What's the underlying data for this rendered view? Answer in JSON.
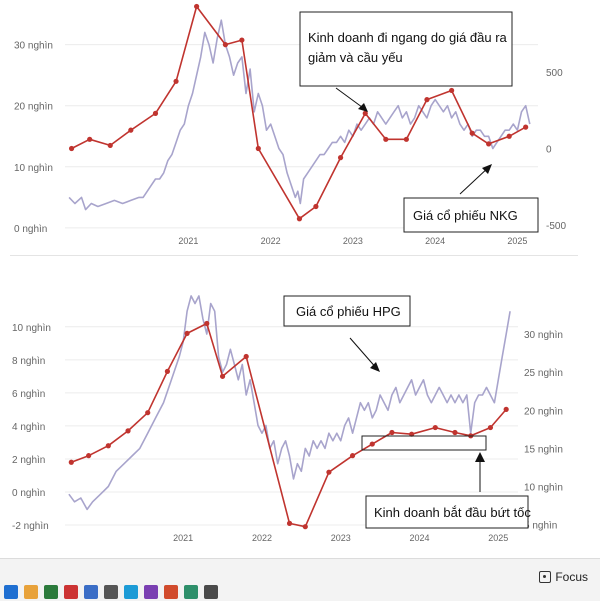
{
  "chart_data": [
    {
      "type": "line",
      "x_ticks": [
        "2021",
        "2022",
        "2023",
        "2024",
        "2025"
      ],
      "left_axis": {
        "tick_labels": [
          "0 nghìn",
          "10 nghìn",
          "20 nghìn",
          "30 nghìn"
        ],
        "tick_values": [
          0,
          10,
          20,
          30
        ],
        "ylim": [
          -1,
          36
        ]
      },
      "right_axis": {
        "tick_labels": [
          "-500",
          "0",
          "500"
        ],
        "tick_values": [
          -500,
          0,
          500
        ],
        "ylim": [
          -560,
          920
        ]
      },
      "series": [
        {
          "color": "#a8a4cc",
          "axis": "left",
          "x": [
            2020.05,
            2020.12,
            2020.2,
            2020.25,
            2020.32,
            2020.4,
            2020.5,
            2020.6,
            2020.7,
            2020.8,
            2020.9,
            2020.95,
            2021.0,
            2021.05,
            2021.1,
            2021.15,
            2021.2,
            2021.25,
            2021.3,
            2021.35,
            2021.4,
            2021.45,
            2021.5,
            2021.55,
            2021.6,
            2021.65,
            2021.7,
            2021.75,
            2021.8,
            2021.85,
            2021.9,
            2021.95,
            2022.0,
            2022.05,
            2022.1,
            2022.15,
            2022.2,
            2022.25,
            2022.3,
            2022.35,
            2022.4,
            2022.45,
            2022.5,
            2022.55,
            2022.6,
            2022.65,
            2022.7,
            2022.75,
            2022.8,
            2022.83,
            2022.86,
            2022.9,
            2022.95,
            2023.0,
            2023.05,
            2023.1,
            2023.15,
            2023.2,
            2023.25,
            2023.3,
            2023.35,
            2023.4,
            2023.45,
            2023.5,
            2023.55,
            2023.6,
            2023.65,
            2023.7,
            2023.75,
            2023.8,
            2023.85,
            2023.9,
            2023.95,
            2024.0,
            2024.05,
            2024.1,
            2024.15,
            2024.2,
            2024.25,
            2024.3,
            2024.35,
            2024.4,
            2024.45,
            2024.5,
            2024.55,
            2024.6,
            2024.65,
            2024.7,
            2024.75,
            2024.8,
            2024.85,
            2024.9,
            2024.95,
            2025.0,
            2025.05,
            2025.1,
            2025.15,
            2025.2,
            2025.25,
            2025.3,
            2025.35,
            2025.4,
            2025.45,
            2025.5,
            2025.55,
            2025.6,
            2025.65
          ],
          "values": [
            5,
            4,
            5,
            3,
            4,
            3.5,
            4,
            4.5,
            4,
            4.5,
            5,
            5,
            6,
            7,
            8,
            8,
            9,
            11,
            12,
            14,
            16,
            17,
            20,
            22,
            25,
            28,
            32,
            30,
            27,
            31,
            34,
            30,
            28,
            25,
            27,
            28,
            22,
            26,
            19,
            22,
            20,
            16,
            17,
            15,
            13,
            12,
            9,
            7,
            5,
            6,
            4,
            8,
            9,
            10,
            11,
            12,
            12,
            13,
            14,
            14,
            15,
            14,
            16,
            15,
            17,
            16,
            17,
            18,
            17,
            19,
            18,
            17,
            18,
            19,
            20,
            18,
            19,
            17,
            18,
            20,
            19,
            18,
            20,
            21,
            20,
            19,
            20,
            18,
            19,
            17,
            16,
            17,
            15,
            16,
            16,
            15,
            15,
            13,
            14,
            15,
            16,
            16,
            17,
            16,
            19,
            20,
            17
          ],
          "label": "Giá cổ phiếu NKG"
        },
        {
          "color": "#c0342f",
          "axis": "right",
          "x": [
            2020.08,
            2020.3,
            2020.55,
            2020.8,
            2021.1,
            2021.35,
            2021.6,
            2021.95,
            2022.15,
            2022.35,
            2022.85,
            2023.05,
            2023.35,
            2023.65,
            2023.9,
            2024.15,
            2024.4,
            2024.7,
            2024.95,
            2025.15,
            2025.4,
            2025.6
          ],
          "values": [
            0,
            60,
            20,
            120,
            230,
            440,
            930,
            680,
            710,
            0,
            -460,
            -380,
            -60,
            230,
            60,
            60,
            320,
            380,
            100,
            30,
            80,
            140
          ],
          "label": "Kinh doanh"
        }
      ],
      "annotations": [
        {
          "text": "Kinh doanh đi ngang do giá đầu ra giảm và cầu yếu"
        },
        {
          "text": "Giá cổ phiếu NKG"
        }
      ]
    },
    {
      "type": "line",
      "x_ticks": [
        "2021",
        "2022",
        "2023",
        "2024",
        "2025"
      ],
      "left_axis": {
        "tick_labels": [
          "-2 nghìn",
          "0 nghìn",
          "2 nghìn",
          "4 nghìn",
          "6 nghìn",
          "8 nghìn",
          "10 nghìn"
        ],
        "tick_values": [
          -2,
          0,
          2,
          4,
          6,
          8,
          10
        ],
        "ylim": [
          -2.3,
          11.5
        ]
      },
      "right_axis": {
        "tick_labels": [
          "5 nghìn",
          "10 nghìn",
          "15 nghìn",
          "20 nghìn",
          "25 nghìn",
          "30 nghìn"
        ],
        "tick_values": [
          5,
          10,
          15,
          20,
          25,
          30
        ],
        "ylim": [
          4.3,
          34.2
        ]
      },
      "series": [
        {
          "color": "#a8a4cc",
          "axis": "right",
          "x": [
            2020.05,
            2020.12,
            2020.2,
            2020.28,
            2020.35,
            2020.45,
            2020.55,
            2020.65,
            2020.75,
            2020.85,
            2020.95,
            2021.05,
            2021.15,
            2021.25,
            2021.35,
            2021.45,
            2021.5,
            2021.55,
            2021.6,
            2021.65,
            2021.7,
            2021.75,
            2021.8,
            2021.85,
            2021.9,
            2021.95,
            2022.0,
            2022.05,
            2022.1,
            2022.15,
            2022.2,
            2022.25,
            2022.3,
            2022.35,
            2022.4,
            2022.45,
            2022.5,
            2022.55,
            2022.6,
            2022.65,
            2022.7,
            2022.75,
            2022.8,
            2022.85,
            2022.9,
            2022.95,
            2023.0,
            2023.05,
            2023.1,
            2023.15,
            2023.2,
            2023.25,
            2023.3,
            2023.35,
            2023.4,
            2023.45,
            2023.5,
            2023.55,
            2023.6,
            2023.65,
            2023.7,
            2023.75,
            2023.8,
            2023.85,
            2023.9,
            2023.95,
            2024.0,
            2024.05,
            2024.1,
            2024.15,
            2024.2,
            2024.25,
            2024.3,
            2024.35,
            2024.4,
            2024.45,
            2024.5,
            2024.55,
            2024.6,
            2024.65,
            2024.7,
            2024.75,
            2024.8,
            2024.85,
            2024.9,
            2024.95,
            2025.0,
            2025.05,
            2025.1,
            2025.15,
            2025.2,
            2025.25,
            2025.3,
            2025.35,
            2025.4,
            2025.45,
            2025.5,
            2025.55,
            2025.6,
            2025.65
          ],
          "values": [
            9,
            8,
            8.5,
            7,
            8,
            9,
            10,
            12,
            13,
            14,
            15,
            17,
            19,
            21,
            24,
            27,
            29,
            33,
            35,
            34,
            35,
            32,
            30,
            34,
            33,
            27,
            25,
            26,
            28,
            26,
            24,
            26,
            22,
            24,
            21,
            18,
            17,
            18,
            15,
            16,
            13,
            15,
            16,
            14,
            11,
            13,
            12,
            15,
            14,
            16,
            15,
            16,
            15,
            17,
            16,
            17,
            16,
            18,
            19,
            17,
            19,
            21,
            20,
            21,
            19,
            20,
            22,
            21,
            20,
            22,
            23,
            21,
            22,
            23,
            24,
            22,
            23,
            24,
            22,
            21,
            22,
            23,
            22,
            21,
            22,
            21,
            22,
            21,
            22,
            17,
            21,
            22,
            22,
            23,
            22,
            21,
            24,
            27,
            30,
            33
          ],
          "label": "Giá cổ phiếu HPG"
        },
        {
          "color": "#c0342f",
          "axis": "left",
          "x": [
            2020.08,
            2020.3,
            2020.55,
            2020.8,
            2021.05,
            2021.3,
            2021.55,
            2021.8,
            2022.0,
            2022.3,
            2022.85,
            2023.05,
            2023.35,
            2023.65,
            2023.9,
            2024.15,
            2024.4,
            2024.7,
            2024.95,
            2025.15,
            2025.4,
            2025.6
          ],
          "values": [
            1.8,
            2.2,
            2.8,
            3.7,
            4.8,
            7.3,
            9.6,
            10.2,
            7.0,
            8.2,
            -1.9,
            -2.1,
            1.2,
            2.2,
            2.9,
            3.6,
            3.5,
            3.9,
            3.6,
            3.4,
            3.9,
            5.0
          ],
          "label": "Kinh doanh"
        }
      ],
      "annotations": [
        {
          "text": "Giá cổ phiếu HPG"
        },
        {
          "text": "Kinh doanh bắt đầu bứt tốc"
        }
      ]
    }
  ],
  "ui": {
    "focus_label": "Focus"
  }
}
